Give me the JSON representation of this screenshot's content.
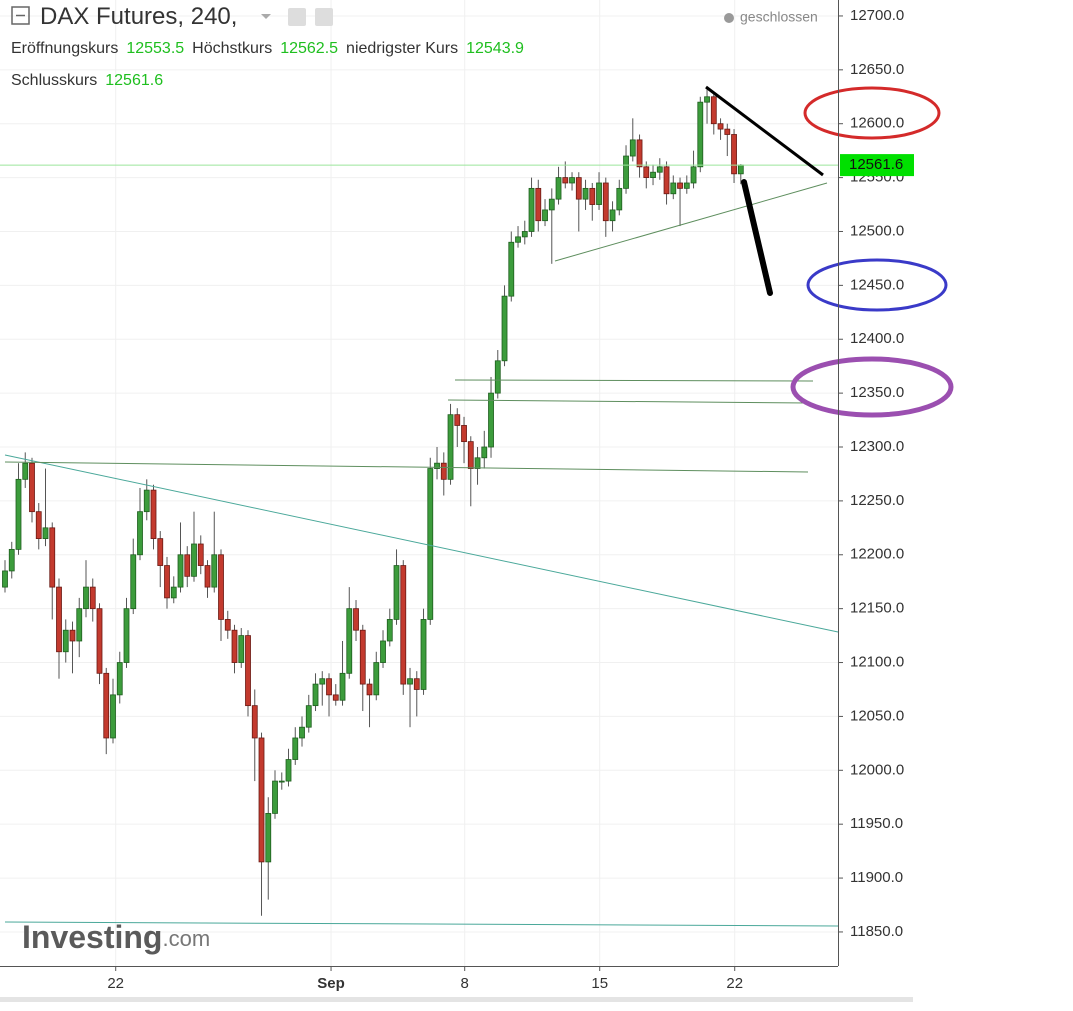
{
  "chart_data": {
    "type": "candlestick",
    "title": "DAX Futures, 240,",
    "status": "geschlossen",
    "labels": {
      "open": "Eröffnungskurs",
      "high": "Höchstkurs",
      "low": "niedrigster Kurs",
      "close": "Schlusskurs"
    },
    "logo": {
      "name": "Investing",
      "suffix": ".com"
    },
    "up_color": "#3c9c3c",
    "down_color": "#c33a2e",
    "grid": true,
    "open": [
      12170,
      12185,
      12205,
      12270,
      12285,
      12240,
      12215,
      12225,
      12170,
      12110,
      12130,
      12120,
      12150,
      12170,
      12150,
      12090,
      12030,
      12070,
      12100,
      12150,
      12200,
      12240,
      12260,
      12215,
      12190,
      12160,
      12170,
      12200,
      12180,
      12210,
      12190,
      12170,
      12200,
      12140,
      12130,
      12100,
      12125,
      12060,
      12030,
      11915,
      11960,
      11990,
      11990,
      12010,
      12030,
      12040,
      12060,
      12080,
      12085,
      12070,
      12065,
      12090,
      12150,
      12130,
      12080,
      12070,
      12100,
      12120,
      12140,
      12190,
      12080,
      12085,
      12075,
      12140,
      12280,
      12285,
      12270,
      12330,
      12320,
      12305,
      12280,
      12290,
      12300,
      12350,
      12380,
      12440,
      12490,
      12495,
      12500,
      12540,
      12510,
      12520,
      12530,
      12550,
      12545,
      12550,
      12530,
      12540,
      12525,
      12545,
      12510,
      12520,
      12540,
      12570,
      12585,
      12560,
      12550,
      12555,
      12560,
      12535,
      12545,
      12540,
      12545,
      12560,
      12620,
      12625,
      12600,
      12595,
      12590,
      12553.5
    ],
    "high": [
      12195,
      12212,
      12285,
      12295,
      12290,
      12248,
      12280,
      12230,
      12178,
      12140,
      12138,
      12160,
      12195,
      12178,
      12155,
      12095,
      12085,
      12110,
      12160,
      12215,
      12262,
      12270,
      12265,
      12222,
      12198,
      12180,
      12230,
      12208,
      12240,
      12218,
      12195,
      12240,
      12205,
      12148,
      12135,
      12132,
      12130,
      12075,
      12035,
      11975,
      12000,
      11998,
      12020,
      12040,
      12050,
      12070,
      12090,
      12092,
      12090,
      12080,
      12120,
      12170,
      12158,
      12135,
      12085,
      12110,
      12130,
      12150,
      12205,
      12195,
      12095,
      12092,
      12150,
      12290,
      12300,
      12295,
      12340,
      12336,
      12328,
      12310,
      12300,
      12315,
      12365,
      12390,
      12450,
      12500,
      12505,
      12510,
      12550,
      12548,
      12530,
      12540,
      12560,
      12565,
      12555,
      12555,
      12548,
      12545,
      12555,
      12550,
      12528,
      12548,
      12580,
      12605,
      12590,
      12565,
      12562,
      12568,
      12565,
      12552,
      12550,
      12552,
      12575,
      12625,
      12632,
      12628,
      12605,
      12600,
      12595,
      12562.5
    ],
    "low": [
      12165,
      12178,
      12200,
      12262,
      12230,
      12205,
      12208,
      12140,
      12085,
      12100,
      12090,
      12105,
      12142,
      12138,
      12080,
      12015,
      12025,
      12062,
      12095,
      12145,
      12195,
      12232,
      12205,
      12170,
      12150,
      12155,
      12165,
      12170,
      12175,
      12182,
      12160,
      12165,
      12120,
      12122,
      12090,
      12095,
      12050,
      11990,
      11865,
      11880,
      11955,
      11982,
      11985,
      12005,
      12022,
      12035,
      12055,
      12060,
      12050,
      12060,
      12060,
      12085,
      12120,
      12055,
      12040,
      12065,
      12095,
      12115,
      12135,
      12070,
      12040,
      12050,
      12070,
      12135,
      12270,
      12255,
      12265,
      12300,
      12285,
      12245,
      12265,
      12280,
      12290,
      12345,
      12375,
      12435,
      12485,
      12488,
      12495,
      12500,
      12505,
      12470,
      12525,
      12540,
      12538,
      12500,
      12520,
      12510,
      12520,
      12495,
      12500,
      12515,
      12535,
      12565,
      12550,
      12540,
      12543,
      12548,
      12525,
      12530,
      12505,
      12535,
      12540,
      12555,
      12600,
      12590,
      12585,
      12570,
      12545,
      12543.9
    ],
    "close": [
      12185,
      12205,
      12270,
      12285,
      12240,
      12215,
      12225,
      12170,
      12110,
      12130,
      12120,
      12150,
      12170,
      12150,
      12090,
      12030,
      12070,
      12100,
      12150,
      12200,
      12240,
      12260,
      12215,
      12190,
      12160,
      12170,
      12200,
      12180,
      12210,
      12190,
      12170,
      12200,
      12140,
      12130,
      12100,
      12125,
      12060,
      12030,
      11915,
      11960,
      11990,
      11990,
      12010,
      12030,
      12040,
      12060,
      12080,
      12085,
      12070,
      12065,
      12090,
      12150,
      12130,
      12080,
      12070,
      12100,
      12120,
      12140,
      12190,
      12080,
      12085,
      12075,
      12140,
      12280,
      12285,
      12270,
      12330,
      12320,
      12305,
      12280,
      12290,
      12300,
      12350,
      12380,
      12440,
      12490,
      12495,
      12500,
      12540,
      12510,
      12520,
      12530,
      12550,
      12545,
      12550,
      12530,
      12540,
      12525,
      12545,
      12510,
      12520,
      12540,
      12570,
      12585,
      12560,
      12550,
      12555,
      12560,
      12535,
      12545,
      12540,
      12545,
      12560,
      12620,
      12625,
      12600,
      12595,
      12590,
      12553.5,
      12561.6
    ],
    "xlim": [
      -0.74,
      123.4
    ],
    "xticks": [
      {
        "value": 16.4,
        "label": "22"
      },
      {
        "value": 48.3,
        "label": "Sep"
      },
      {
        "value": 68.1,
        "label": "8"
      },
      {
        "value": 88.1,
        "label": "15"
      },
      {
        "value": 108.1,
        "label": "22"
      }
    ],
    "ylim": [
      11818.4,
      12714.8
    ],
    "yticks": [
      {
        "value": 11850,
        "label": "11850.0"
      },
      {
        "value": 11900,
        "label": "11900.0"
      },
      {
        "value": 11950,
        "label": "11950.0"
      },
      {
        "value": 12000,
        "label": "12000.0"
      },
      {
        "value": 12050,
        "label": "12050.0"
      },
      {
        "value": 12100,
        "label": "12100.0"
      },
      {
        "value": 12150,
        "label": "12150.0"
      },
      {
        "value": 12200,
        "label": "12200.0"
      },
      {
        "value": 12250,
        "label": "12250.0"
      },
      {
        "value": 12300,
        "label": "12300.0"
      },
      {
        "value": 12350,
        "label": "12350.0"
      },
      {
        "value": 12400,
        "label": "12400.0"
      },
      {
        "value": 12450,
        "label": "12450.0"
      },
      {
        "value": 12500,
        "label": "12500.0"
      },
      {
        "value": 12550,
        "label": "12550.0"
      },
      {
        "value": 12600,
        "label": "12600.0"
      },
      {
        "value": 12650,
        "label": "12650.0"
      },
      {
        "value": 12700,
        "label": "12700.0"
      }
    ]
  }
}
